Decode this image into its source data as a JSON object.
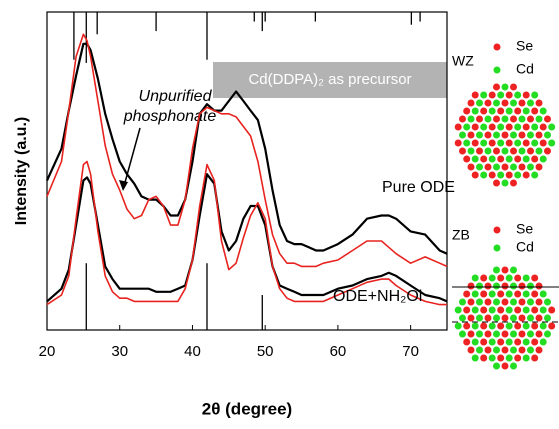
{
  "chart_data": {
    "type": "line",
    "x_label": "2θ (degree)",
    "y_label": "Intensity (a.u.)",
    "xlim": [
      20,
      75
    ],
    "xticks": [
      20,
      30,
      40,
      50,
      60,
      70
    ],
    "ylim": [
      0,
      100
    ],
    "x": [
      20,
      22,
      23,
      24,
      25,
      25.5,
      26,
      27,
      28,
      29,
      30,
      31,
      32,
      33,
      34,
      35,
      36,
      37,
      38,
      39,
      40,
      41,
      42,
      43,
      44,
      45,
      46,
      47,
      48,
      49,
      50,
      51,
      52,
      53,
      54,
      55,
      56,
      57,
      58,
      60,
      62,
      64,
      66,
      67,
      68,
      70,
      72,
      74,
      75
    ],
    "series": [
      {
        "name": "Pure ODE",
        "color": "#000000",
        "values": [
          47,
          57,
          69,
          80,
          90,
          90,
          88,
          79,
          68,
          60,
          53,
          49,
          46,
          42,
          41,
          41,
          39,
          36,
          36,
          41,
          53,
          68,
          71,
          69,
          69,
          72,
          75,
          72,
          69,
          66,
          57,
          44,
          33,
          28,
          27,
          27,
          26,
          25,
          25,
          27,
          30,
          35,
          36,
          36,
          35,
          31,
          30,
          25,
          24
        ]
      },
      {
        "color": "#e8231f",
        "values": [
          42,
          53,
          69,
          86,
          93,
          91,
          86,
          72,
          58,
          49,
          44,
          38,
          35,
          36,
          41,
          42,
          39,
          33,
          33,
          41,
          57,
          68,
          70,
          69,
          68,
          68,
          67,
          64,
          61,
          53,
          41,
          30,
          24,
          21,
          21,
          20,
          20,
          20,
          21,
          22,
          25,
          28,
          28,
          26,
          24,
          21,
          23,
          21,
          20
        ]
      },
      {
        "name": "ODE+NH₂Ol",
        "color": "#000000",
        "values": [
          9,
          13,
          19,
          33,
          47,
          48,
          46,
          33,
          20,
          16,
          13,
          13,
          13,
          13,
          13,
          12,
          12,
          12,
          13,
          14,
          22,
          36,
          49,
          46,
          31,
          25,
          28,
          35,
          39,
          39,
          33,
          20,
          14,
          13,
          12,
          11,
          11,
          11,
          11,
          13,
          14,
          16,
          17,
          18,
          17,
          14,
          11,
          10,
          9
        ]
      },
      {
        "color": "#e8231f",
        "values": [
          8,
          11,
          17,
          35,
          52,
          53,
          49,
          31,
          17,
          12,
          10,
          10,
          9,
          9,
          9,
          9,
          9,
          9,
          9,
          13,
          22,
          39,
          52,
          47,
          28,
          19,
          21,
          29,
          36,
          40,
          35,
          20,
          13,
          10,
          9,
          9,
          9,
          9,
          9,
          11,
          13,
          15,
          16,
          16,
          14,
          11,
          9,
          8,
          8
        ]
      }
    ],
    "stick_patterns": [
      {
        "position": "top",
        "color": "#000000",
        "x": [
          23.7,
          25.4,
          26.9,
          35.0,
          42.0,
          48.5,
          49.6,
          50.0,
          56.9,
          70.1,
          71.3
        ],
        "values": [
          15,
          16,
          7,
          6,
          15,
          3,
          6,
          3,
          3,
          4,
          3
        ]
      },
      {
        "position": "bottom",
        "color": "#000000",
        "x": [
          25.4,
          42.0,
          49.6
        ],
        "values": [
          21,
          21,
          11
        ]
      }
    ],
    "annotations": [
      "Unpurified",
      "phosphonate"
    ],
    "precursor_label": "Cd(DDPA)₂ as precursor"
  },
  "structures": [
    {
      "name": "WZ",
      "legend": [
        "Se",
        "Cd"
      ],
      "colors": [
        "#ee2222",
        "#22dd22"
      ]
    },
    {
      "name": "ZB",
      "legend": [
        "Se",
        "Cd"
      ],
      "colors": [
        "#ee2222",
        "#22dd22"
      ]
    }
  ]
}
